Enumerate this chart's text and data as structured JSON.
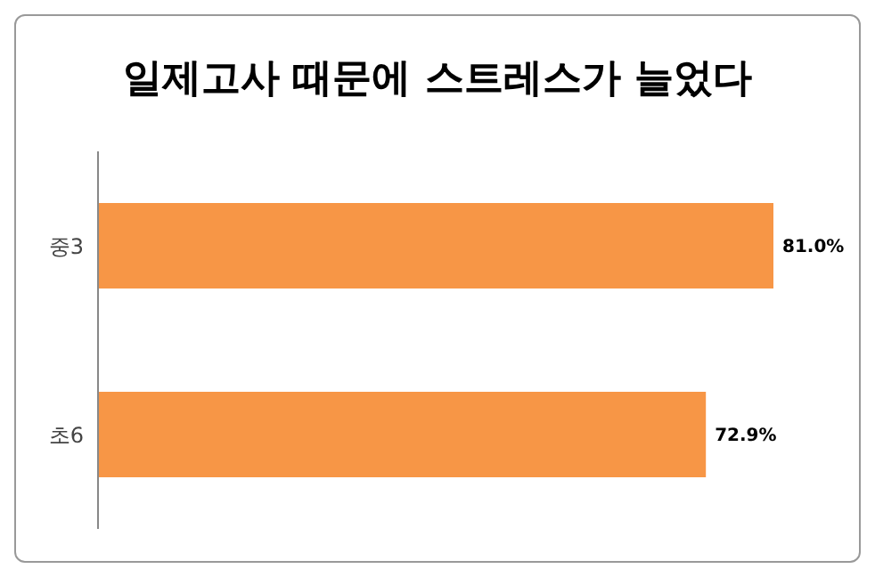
{
  "chart_data": {
    "type": "bar",
    "orientation": "horizontal",
    "title": "일제고사 때문에 스트레스가 늘었다",
    "categories": [
      "중3",
      "초6"
    ],
    "values": [
      81.0,
      72.9
    ],
    "value_labels": [
      "81.0%",
      "72.9%"
    ],
    "color": "#f79646",
    "tick_labels": "y",
    "grid": false,
    "legend": false
  }
}
